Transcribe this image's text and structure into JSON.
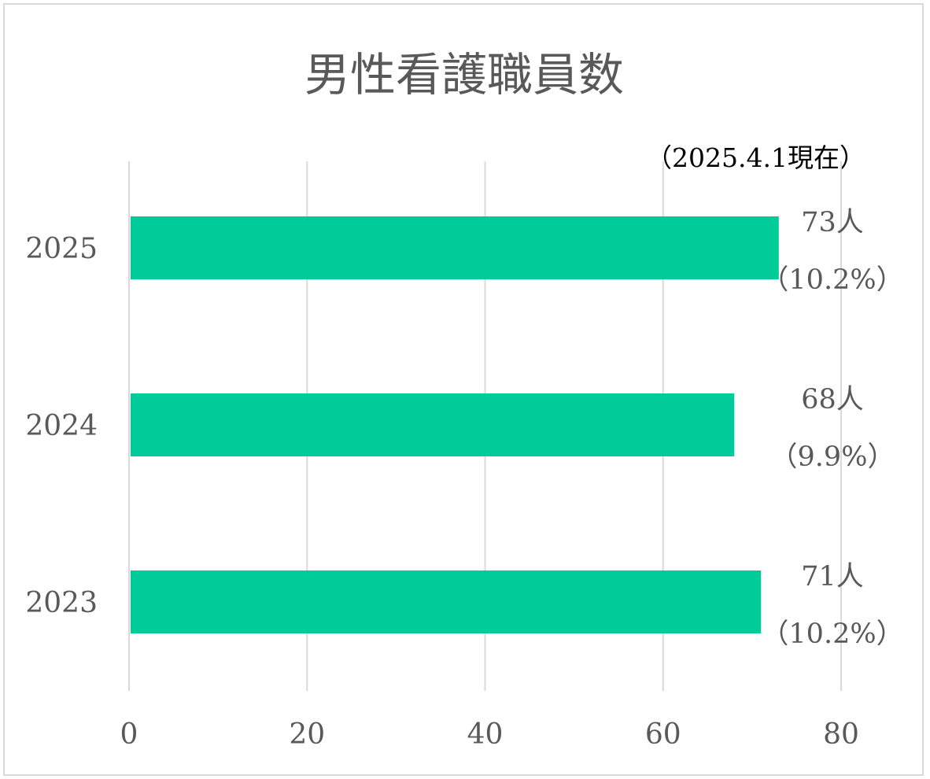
{
  "chart_data": {
    "type": "bar",
    "orientation": "horizontal",
    "title": "男性看護職員数",
    "note": "（2025.4.1現在）",
    "categories": [
      "2025",
      "2024",
      "2023"
    ],
    "values": [
      73,
      68,
      71
    ],
    "value_labels": [
      "73人",
      "68人",
      "71人"
    ],
    "percent_labels": [
      "（10.2%）",
      "（9.9%）",
      "（10.2%）"
    ],
    "xlim": [
      0,
      80
    ],
    "x_ticks": [
      0,
      20,
      40,
      60,
      80
    ],
    "x_tick_labels": [
      "0",
      "20",
      "40",
      "60",
      "80"
    ],
    "grid": "vertical",
    "legend": "none",
    "colors": {
      "bar": "#00cc99",
      "grid": "#d9d9d9",
      "text": "#595959",
      "frame": "#d9d9d9"
    }
  }
}
